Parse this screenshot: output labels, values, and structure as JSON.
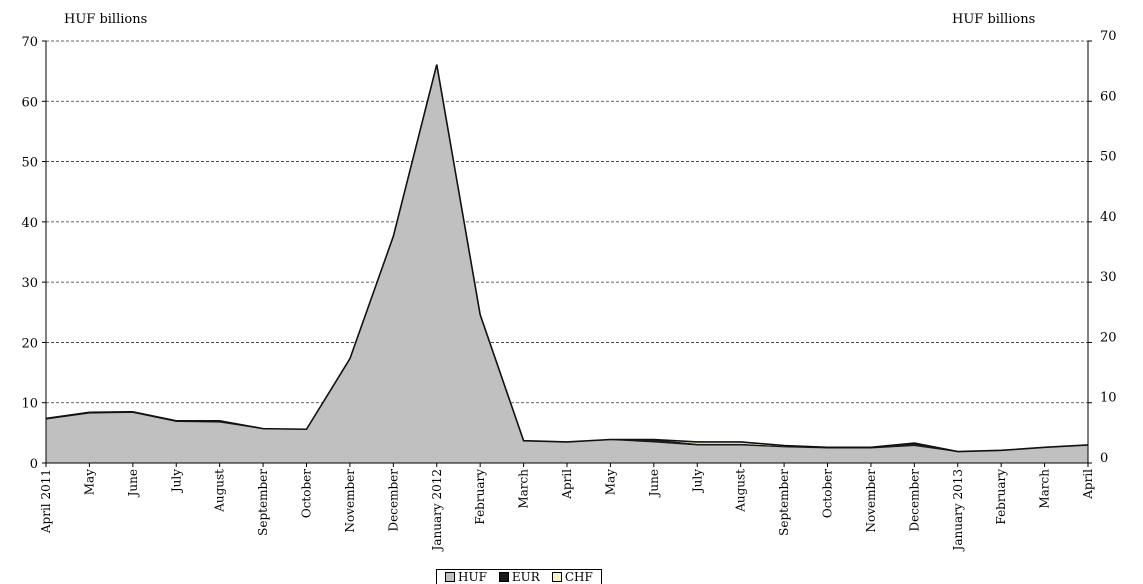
{
  "chart_data": {
    "type": "area",
    "stacked": true,
    "left_axis_label": "HUF billions",
    "right_axis_label": "HUF billions",
    "ylim": [
      0,
      70
    ],
    "yticks": [
      0,
      10,
      20,
      30,
      40,
      50,
      60,
      70
    ],
    "grid": "horizontal dashed",
    "legend_position": "bottom",
    "categories": [
      "April 2011",
      "May",
      "June",
      "July",
      "August",
      "September",
      "October",
      "November",
      "December",
      "January 2012",
      "February",
      "March",
      "April",
      "May",
      "June",
      "July",
      "August",
      "September",
      "October",
      "November",
      "December",
      "January 2013",
      "February",
      "March",
      "April"
    ],
    "series": [
      {
        "name": "HUF",
        "color": "#c0c0c0",
        "values": [
          7.2,
          8.2,
          8.3,
          6.8,
          6.7,
          5.6,
          5.5,
          17.2,
          37.5,
          66.0,
          24.5,
          3.6,
          3.4,
          3.8,
          3.4,
          2.9,
          2.9,
          2.6,
          2.4,
          2.4,
          2.8,
          1.8,
          2.0,
          2.5,
          2.9
        ]
      },
      {
        "name": "EUR",
        "color": "#1a1a1a",
        "values": [
          0.2,
          0.2,
          0.2,
          0.2,
          0.3,
          0.1,
          0.1,
          0.1,
          0.1,
          0.1,
          0.1,
          0.1,
          0.1,
          0.1,
          0.5,
          0.3,
          0.3,
          0.2,
          0.2,
          0.2,
          0.5,
          0.1,
          0.1,
          0.1,
          0.1
        ]
      },
      {
        "name": "CHF",
        "color": "#f5f3c8",
        "values": [
          0,
          0,
          0,
          0,
          0,
          0,
          0,
          0,
          0,
          0,
          0,
          0,
          0,
          0,
          0,
          0.3,
          0.3,
          0.1,
          0,
          0,
          0,
          0,
          0,
          0,
          0
        ]
      }
    ]
  }
}
